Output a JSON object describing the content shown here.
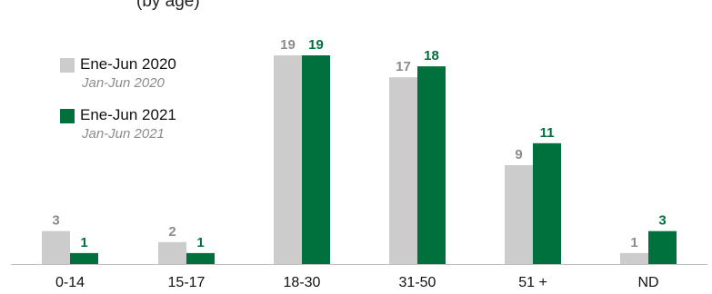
{
  "header": {
    "partial_title": "(by age)"
  },
  "legend": {
    "items": [
      {
        "label": "Ene-Jun 2020",
        "sublabel": "Jan-Jun 2020",
        "color": "#cccccc"
      },
      {
        "label": "Ene-Jun 2021",
        "sublabel": "Jan-Jun 2021",
        "color": "#00703c"
      }
    ]
  },
  "chart_data": {
    "type": "bar",
    "categories": [
      "0-14",
      "15-17",
      "18-30",
      "31-50",
      "51 +",
      "ND"
    ],
    "series": [
      {
        "name": "Ene-Jun 2020",
        "values": [
          3,
          2,
          19,
          17,
          9,
          1
        ],
        "color": "#cccccc",
        "label_color": "#8c8c8c"
      },
      {
        "name": "Ene-Jun 2021",
        "values": [
          1,
          1,
          19,
          18,
          11,
          3
        ],
        "color": "#00703c",
        "label_color": "#00703c"
      }
    ],
    "ylim": [
      0,
      20
    ],
    "grid": false,
    "legend_position": "top-left"
  }
}
